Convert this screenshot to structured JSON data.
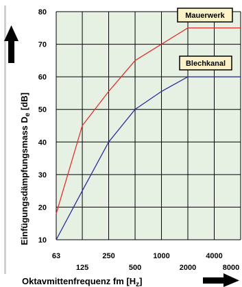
{
  "chart_data": {
    "type": "line",
    "ylabel": "Einfügungsdämpfungsmass D",
    "ylabel_sub": "e",
    "ylabel_unit": " [dB]",
    "xlabel": "Oktavmittenfrequenz fm [H",
    "xlabel_sub": "z",
    "xlabel_end": "]",
    "x_scale": "log2",
    "x": [
      63,
      125,
      250,
      500,
      1000,
      2000,
      4000,
      8000
    ],
    "xtick_labels": [
      "63",
      "125",
      "250",
      "500",
      "1000",
      "2000",
      "4000",
      "8000"
    ],
    "ylim": [
      10,
      80
    ],
    "yticks": [
      10,
      20,
      30,
      40,
      50,
      60,
      70,
      80
    ],
    "grid": true,
    "colors": {
      "plot_bg": "#e6f1e4",
      "grid": "#000000",
      "label_box": "#fbf3c7"
    },
    "series": [
      {
        "name": "Mauerwerk",
        "color": "#e03030",
        "points": [
          [
            63,
            18
          ],
          [
            125,
            45
          ],
          [
            250,
            55.5
          ],
          [
            500,
            65
          ],
          [
            1000,
            70
          ],
          [
            2000,
            75
          ],
          [
            4000,
            75
          ],
          [
            8000,
            75
          ]
        ]
      },
      {
        "name": "Blechkanal",
        "color": "#2a2a9a",
        "points": [
          [
            63,
            10
          ],
          [
            125,
            25
          ],
          [
            250,
            40
          ],
          [
            500,
            50
          ],
          [
            1000,
            55.5
          ],
          [
            2000,
            60
          ],
          [
            4000,
            60
          ],
          [
            8000,
            60
          ]
        ]
      }
    ]
  }
}
